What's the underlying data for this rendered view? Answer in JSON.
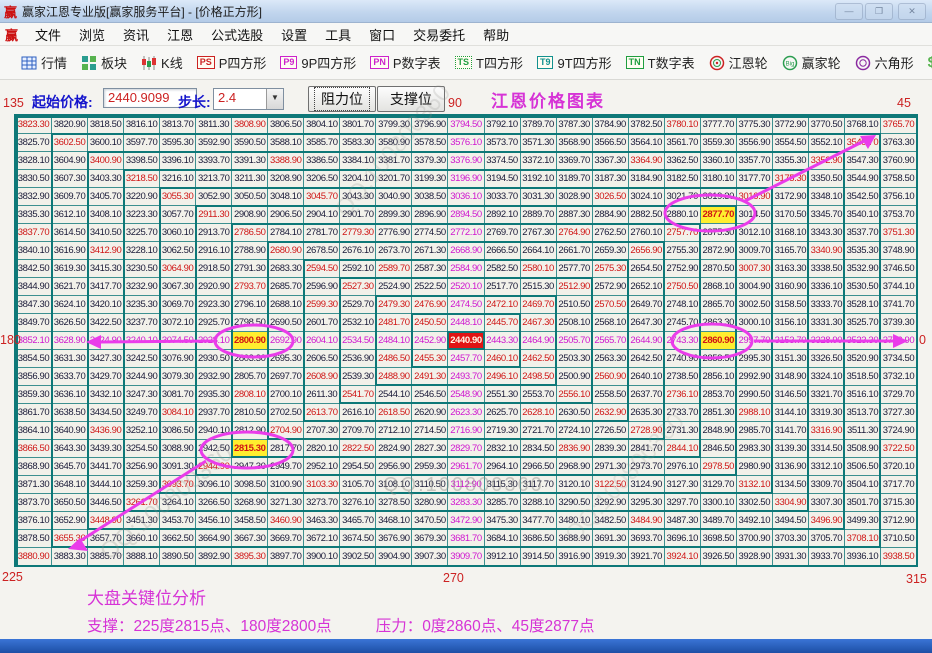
{
  "window": {
    "logo": "赢",
    "title": "赢家江恩专业版[赢家服务平台] - [价格正方形]",
    "minimize": "—",
    "maximize": "❐",
    "close": "✕"
  },
  "menu": {
    "items": [
      "文件",
      "浏览",
      "资讯",
      "江恩",
      "公式选股",
      "设置",
      "工具",
      "窗口",
      "交易委托",
      "帮助"
    ]
  },
  "toolbar": {
    "items": [
      {
        "label": "行情",
        "icon": "quotes-icon"
      },
      {
        "label": "板块",
        "icon": "blocks-icon"
      },
      {
        "label": "K线",
        "icon": "kline-icon"
      },
      {
        "label": "P四方形",
        "icon": "badge-icon",
        "badge": "PS",
        "style": "red"
      },
      {
        "label": "9P四方形",
        "icon": "badge-icon",
        "badge": "P9",
        "style": "magenta"
      },
      {
        "label": "P数字表",
        "icon": "badge-icon",
        "badge": "PN",
        "style": "magenta"
      },
      {
        "label": "T四方形",
        "icon": "badge-icon",
        "badge": "TS",
        "style": "green-dotted"
      },
      {
        "label": "9T四方形",
        "icon": "badge-icon",
        "badge": "T9",
        "style": "teal"
      },
      {
        "label": "T数字表",
        "icon": "badge-icon",
        "badge": "TN",
        "style": "green"
      },
      {
        "label": "江恩轮",
        "icon": "gann-wheel-icon"
      },
      {
        "label": "赢家轮",
        "icon": "winner-wheel-icon",
        "badge": "Big"
      },
      {
        "label": "六角形",
        "icon": "hexagon-icon"
      },
      {
        "label": "赢家服务",
        "icon": "dollar-icon",
        "badge": "$"
      }
    ]
  },
  "controls": {
    "start_label": "起始价格:",
    "start_value": "2440.9099",
    "step_label": "步长:",
    "step_value": "2.4",
    "dropdown_arrow": "▼",
    "resistance_button": "阻力位",
    "support_button": "支撑位",
    "chart_title": "江恩价格图表"
  },
  "degree_labels": {
    "top_left": "135",
    "top_center": "90",
    "top_right": "45",
    "middle_left": "180",
    "middle_right": "0",
    "bottom_left": "225",
    "bottom_center": "270",
    "bottom_right": "315"
  },
  "chart_data": {
    "type": "table",
    "title": "江恩价格图表 (Gann price square 25×25)",
    "description": "Square-of-25 Gann spiral. Values start at center = start_price and increase by step per cell, spiraling outward: up the right side of each ring, left across the top, down the left side, right across the bottom. Displayed truncated to 2 decimals. Cells on 22.5° ring-angle lines are red, cells on the 0/90/180/270 cross are magenta, others dark.",
    "start_price": 2440.9099,
    "step": 2.4,
    "size": 25,
    "center_display": "2440.90",
    "corner_values": {
      "top_left": "3823.30",
      "top_right": "3765.70",
      "bottom_left": "3880.90",
      "bottom_right": "3938.50"
    },
    "colors": {
      "grid_line": "#3d9090",
      "ring_line": "#0e7878",
      "normal_text": "#1a1a38",
      "angle_text": "#cf1616",
      "cross_text": "#cf16cf",
      "highlight_bg": "#ffee2e",
      "center_bg": "#e01414",
      "annotation": "#ea3cea"
    },
    "highlights": [
      {
        "degree": "45",
        "display": "2877.70",
        "row": 5,
        "col": 19
      },
      {
        "degree": "0",
        "display": "2860.90",
        "row": 12,
        "col": 19
      },
      {
        "degree": "180",
        "display": "2800.90",
        "row": 12,
        "col": 6
      },
      {
        "degree": "225",
        "display": "2815.30",
        "row": 18,
        "col": 6
      }
    ]
  },
  "analysis": {
    "title": "大盘关键位分析",
    "support": "支撑：225度2815点、180度2800点",
    "pressure": "压力：0度2860点、45度2877点"
  },
  "watermark": {
    "text": "QQ:100800360"
  }
}
